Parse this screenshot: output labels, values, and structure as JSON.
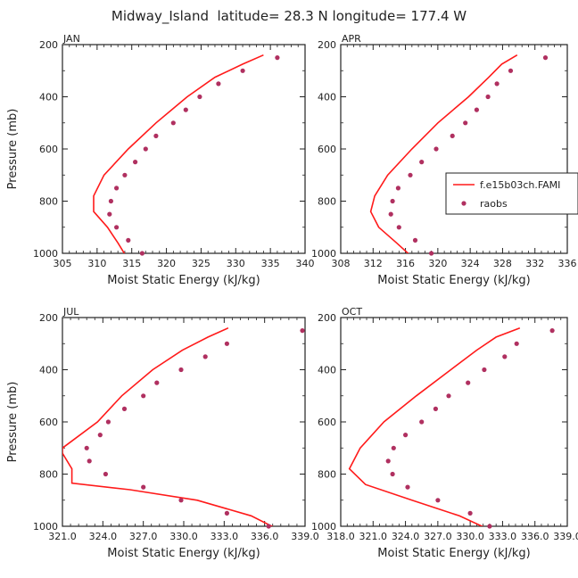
{
  "figure": {
    "title": "Midway_Island  latitude= 28.3 N longitude= 177.4 W",
    "line_color": "#ff1a1a",
    "dot_color": "#b03060",
    "legend": {
      "line_label": "f.e15b03ch.FAMI",
      "dot_label": "raobs"
    }
  },
  "chart_data": [
    {
      "type": "line",
      "panel": "JAN",
      "xlabel": "Moist Static Energy (kJ/kg)",
      "ylabel": "Pressure (mb)",
      "xlim": [
        305,
        340
      ],
      "ylim": [
        1000,
        200
      ],
      "xticks": [
        "305",
        "310",
        "315",
        "320",
        "325",
        "330",
        "335",
        "340"
      ],
      "yticks": [
        "200",
        "400",
        "600",
        "800",
        "1000"
      ],
      "series": [
        {
          "kind": "line",
          "pressure": [
            240,
            275,
            325,
            400,
            500,
            600,
            700,
            780,
            840,
            900,
            960,
            1025
          ],
          "mse": [
            334.0,
            331.0,
            327.0,
            323.0,
            318.5,
            314.5,
            311.0,
            309.5,
            309.5,
            311.5,
            313.0,
            314.5
          ]
        },
        {
          "kind": "scatter",
          "name": "raobs",
          "pressure": [
            250,
            300,
            350,
            400,
            450,
            500,
            550,
            600,
            650,
            700,
            750,
            800,
            850,
            900,
            950,
            1000
          ],
          "mse": [
            336.0,
            331.0,
            327.5,
            324.8,
            322.8,
            321.0,
            318.5,
            317.0,
            315.5,
            314.0,
            312.8,
            312.0,
            311.8,
            312.8,
            314.5,
            316.5
          ]
        }
      ]
    },
    {
      "type": "line",
      "panel": "APR",
      "xlabel": "Moist Static Energy (kJ/kg)",
      "ylabel": "",
      "xlim": [
        308,
        336
      ],
      "ylim": [
        1000,
        200
      ],
      "xticks": [
        "308",
        "312",
        "316",
        "320",
        "324",
        "328",
        "332",
        "336"
      ],
      "yticks": [
        "200",
        "400",
        "600",
        "800",
        "1000"
      ],
      "series": [
        {
          "kind": "line",
          "pressure": [
            240,
            275,
            325,
            400,
            500,
            600,
            700,
            780,
            840,
            900,
            960,
            1025
          ],
          "mse": [
            329.8,
            327.9,
            326.3,
            323.8,
            320.0,
            316.8,
            313.8,
            312.2,
            311.7,
            312.7,
            314.9,
            317.2
          ]
        },
        {
          "kind": "scatter",
          "name": "raobs",
          "pressure": [
            250,
            300,
            350,
            400,
            450,
            500,
            550,
            600,
            650,
            700,
            750,
            800,
            850,
            900,
            950,
            1000
          ],
          "mse": [
            333.3,
            329.0,
            327.3,
            326.2,
            324.8,
            323.4,
            321.8,
            319.8,
            318.0,
            316.6,
            315.1,
            314.4,
            314.2,
            315.2,
            317.2,
            319.2
          ]
        }
      ]
    },
    {
      "type": "line",
      "panel": "JUL",
      "xlabel": "Moist Static Energy (kJ/kg)",
      "ylabel": "Pressure (mb)",
      "xlim": [
        321.0,
        339.0
      ],
      "ylim": [
        1000,
        200
      ],
      "xticks": [
        "321.0",
        "324.0",
        "327.0",
        "330.0",
        "333.0",
        "336.0",
        "339.0"
      ],
      "yticks": [
        "200",
        "400",
        "600",
        "800",
        "1000"
      ],
      "series": [
        {
          "kind": "line",
          "pressure": [
            240,
            275,
            325,
            400,
            500,
            600,
            700,
            720,
            780,
            835,
            860,
            900,
            960,
            1025
          ],
          "mse": [
            333.3,
            331.8,
            329.9,
            327.7,
            325.4,
            323.6,
            321.0,
            321.0,
            321.7,
            321.7,
            326.0,
            331.0,
            335.0,
            337.5
          ]
        },
        {
          "kind": "scatter",
          "name": "raobs",
          "pressure": [
            250,
            300,
            350,
            400,
            450,
            500,
            550,
            600,
            650,
            700,
            750,
            800,
            850,
            900,
            950,
            1000
          ],
          "mse": [
            338.8,
            333.2,
            331.6,
            329.8,
            328.0,
            327.0,
            325.6,
            324.4,
            323.8,
            322.8,
            323.0,
            324.2,
            327.0,
            329.8,
            333.2,
            336.3
          ]
        }
      ]
    },
    {
      "type": "line",
      "panel": "OCT",
      "xlabel": "Moist Static Energy (kJ/kg)",
      "ylabel": "",
      "xlim": [
        318.0,
        339.0
      ],
      "ylim": [
        1000,
        200
      ],
      "xticks": [
        "318.0",
        "321.0",
        "324.0",
        "327.0",
        "330.0",
        "333.0",
        "336.0",
        "339.0"
      ],
      "yticks": [
        "200",
        "400",
        "600",
        "800",
        "1000"
      ],
      "series": [
        {
          "kind": "line",
          "pressure": [
            240,
            275,
            325,
            400,
            500,
            600,
            700,
            780,
            840,
            900,
            960,
            1025
          ],
          "mse": [
            334.6,
            332.4,
            330.6,
            328.2,
            325.0,
            322.0,
            319.8,
            318.8,
            320.3,
            324.6,
            329.0,
            332.4
          ]
        },
        {
          "kind": "scatter",
          "name": "raobs",
          "pressure": [
            250,
            300,
            350,
            400,
            450,
            500,
            550,
            600,
            650,
            700,
            750,
            800,
            850,
            900,
            950,
            1000
          ],
          "mse": [
            337.6,
            334.3,
            333.2,
            331.3,
            329.8,
            328.0,
            326.8,
            325.5,
            324.0,
            322.9,
            322.4,
            322.8,
            324.2,
            327.0,
            330.0,
            331.8
          ]
        }
      ]
    }
  ]
}
